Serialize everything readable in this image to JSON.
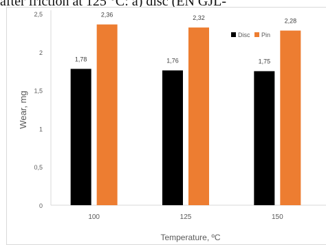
{
  "caption": "after friction at 125 °C: a) disc (EN GJL-",
  "colors": {
    "disc": "#000000",
    "pin": "#ED7D31",
    "grid": "#d9d9d9",
    "text": "#595959"
  },
  "chart_data": {
    "type": "bar",
    "categories": [
      "100",
      "125",
      "150"
    ],
    "series": [
      {
        "name": "Disc",
        "values": [
          1.78,
          1.76,
          1.75
        ],
        "labels": [
          "1,78",
          "1,76",
          "1,75"
        ]
      },
      {
        "name": "Pin",
        "values": [
          2.36,
          2.32,
          2.28
        ],
        "labels": [
          "2,36",
          "2,32",
          "2,28"
        ]
      }
    ],
    "xlabel": "Temperature, ºC",
    "ylabel": "Wear, mg",
    "ylim": [
      0,
      2.5
    ],
    "yticks": [
      0,
      0.5,
      1,
      1.5,
      2,
      2.5
    ],
    "ytick_labels": [
      "0",
      "0,5",
      "1",
      "1,5",
      "2",
      "2,5"
    ],
    "legend_position": "top-right",
    "grid": false
  }
}
